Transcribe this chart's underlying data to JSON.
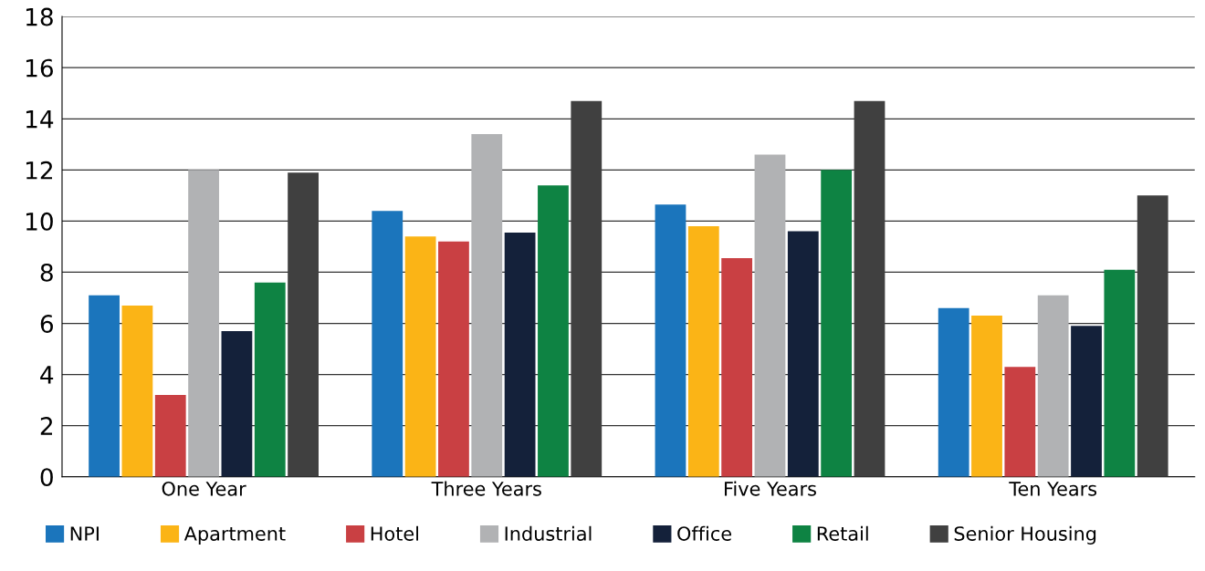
{
  "chart_data": {
    "type": "bar",
    "categories": [
      "One Year",
      "Three Years",
      "Five Years",
      "Ten Years"
    ],
    "series": [
      {
        "name": "NPI",
        "color": "#1b75bc",
        "values": [
          7.1,
          10.4,
          10.65,
          6.6
        ]
      },
      {
        "name": "Apartment",
        "color": "#fbb416",
        "values": [
          6.7,
          9.4,
          9.8,
          6.3
        ]
      },
      {
        "name": "Hotel",
        "color": "#c94043",
        "values": [
          3.2,
          9.2,
          8.55,
          4.3
        ]
      },
      {
        "name": "Industrial",
        "color": "#b1b2b4",
        "values": [
          12.0,
          13.4,
          12.6,
          7.1
        ]
      },
      {
        "name": "Office",
        "color": "#14213a",
        "values": [
          5.7,
          9.55,
          9.6,
          5.9
        ]
      },
      {
        "name": "Retail",
        "color": "#0e8343",
        "values": [
          7.6,
          11.4,
          12.0,
          8.1
        ]
      },
      {
        "name": "Senior Housing",
        "color": "#404040",
        "values": [
          11.9,
          14.7,
          14.7,
          11.0
        ]
      }
    ],
    "ylim": [
      0,
      18
    ],
    "yticks": [
      0,
      2,
      4,
      6,
      8,
      10,
      12,
      14,
      16,
      18
    ],
    "grid": "y",
    "legend": "bottom"
  }
}
